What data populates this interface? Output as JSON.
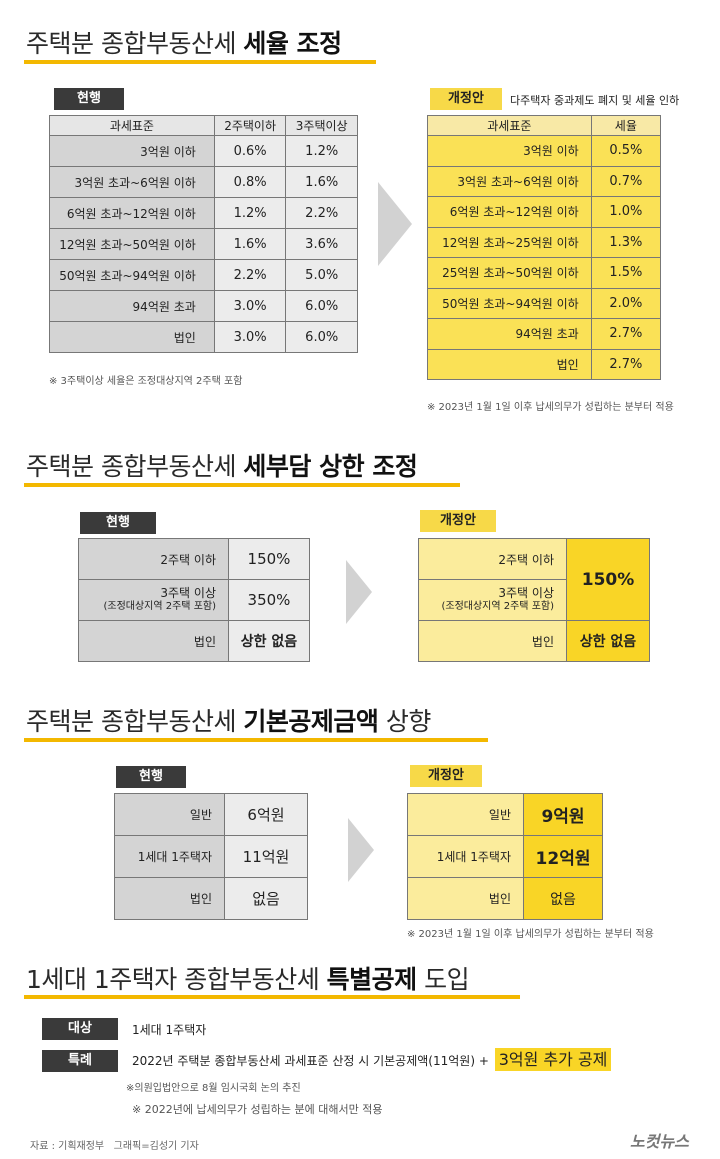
{
  "section1": {
    "title_normal": "주택분 종합부동산세 ",
    "title_bold": "세율 조정",
    "current_label": "현행",
    "proposal_label": "개정안",
    "proposal_desc": "다주택자 중과제도 폐지 및 세율 인하",
    "current_headers": [
      "과세표준",
      "2주택이하",
      "3주택이상"
    ],
    "current_rows": [
      {
        "base": "3억원 이하",
        "a": "0.6%",
        "b": "1.2%"
      },
      {
        "base": "3억원 초과~6억원 이하",
        "a": "0.8%",
        "b": "1.6%"
      },
      {
        "base": "6억원 초과~12억원 이하",
        "a": "1.2%",
        "b": "2.2%"
      },
      {
        "base": "12억원 초과~50억원 이하",
        "a": "1.6%",
        "b": "3.6%"
      },
      {
        "base": "50억원 초과~94억원 이하",
        "a": "2.2%",
        "b": "5.0%"
      },
      {
        "base": "94억원 초과",
        "a": "3.0%",
        "b": "6.0%"
      },
      {
        "base": "법인",
        "a": "3.0%",
        "b": "6.0%"
      }
    ],
    "current_note": "※ 3주택이상 세율은 조정대상지역 2주택 포함",
    "proposal_headers": [
      "과세표준",
      "세율"
    ],
    "proposal_rows": [
      {
        "base": "3억원 이하",
        "rate": "0.5%"
      },
      {
        "base": "3억원 초과~6억원 이하",
        "rate": "0.7%"
      },
      {
        "base": "6억원 초과~12억원 이하",
        "rate": "1.0%"
      },
      {
        "base": "12억원 초과~25억원 이하",
        "rate": "1.3%"
      },
      {
        "base": "25억원 초과~50억원 이하",
        "rate": "1.5%"
      },
      {
        "base": "50억원 초과~94억원 이하",
        "rate": "2.0%"
      },
      {
        "base": "94억원 초과",
        "rate": "2.7%"
      },
      {
        "base": "법인",
        "rate": "2.7%"
      }
    ],
    "proposal_note": "※ 2023년 1월 1일 이후 납세의무가 성립하는 분부터 적용"
  },
  "section2": {
    "title_normal": "주택분 종합부동산세 ",
    "title_bold": "세부담 상한 조정",
    "current_label": "현행",
    "proposal_label": "개정안",
    "row1": "2주택 이하",
    "row2": "3주택 이상",
    "row2_sub": "(조정대상지역 2주택 포함)",
    "row3": "법인",
    "cur_v1": "150%",
    "cur_v2": "350%",
    "cur_v3": "상한 없음",
    "new_v12": "150%",
    "new_v3": "상한 없음"
  },
  "section3": {
    "title_normal": "주택분 종합부동산세 ",
    "title_bold": "기본공제금액",
    "title_tail": " 상향",
    "current_label": "현행",
    "proposal_label": "개정안",
    "row1": "일반",
    "row2": "1세대 1주택자",
    "row3": "법인",
    "cur_v1": "6억원",
    "cur_v2": "11억원",
    "cur_v3": "없음",
    "new_v1": "9억원",
    "new_v2": "12억원",
    "new_v3": "없음",
    "note": "※ 2023년 1월 1일 이후 납세의무가 성립하는 분부터 적용"
  },
  "section4": {
    "title_normal": "1세대 1주택자 종합부동산세 ",
    "title_bold": "특별공제",
    "title_tail": " 도입",
    "target_label": "대상",
    "target_value": "1세대 1주택자",
    "special_label": "특례",
    "special_value": "2022년 주택분 종합부동산세 과세표준 산정 시 기본공제액(11억원) +",
    "special_highlight": "3억원 추가 공제",
    "note1": "※의원입법안으로 8월 임시국회 논의 추진",
    "note2": "※ 2022년에 납세의무가 성립하는 분에 대해서만 적용"
  },
  "footer": {
    "source": "자료 : 기획재정부   그래픽=김성기 기자",
    "logo": "노컷뉴스"
  }
}
